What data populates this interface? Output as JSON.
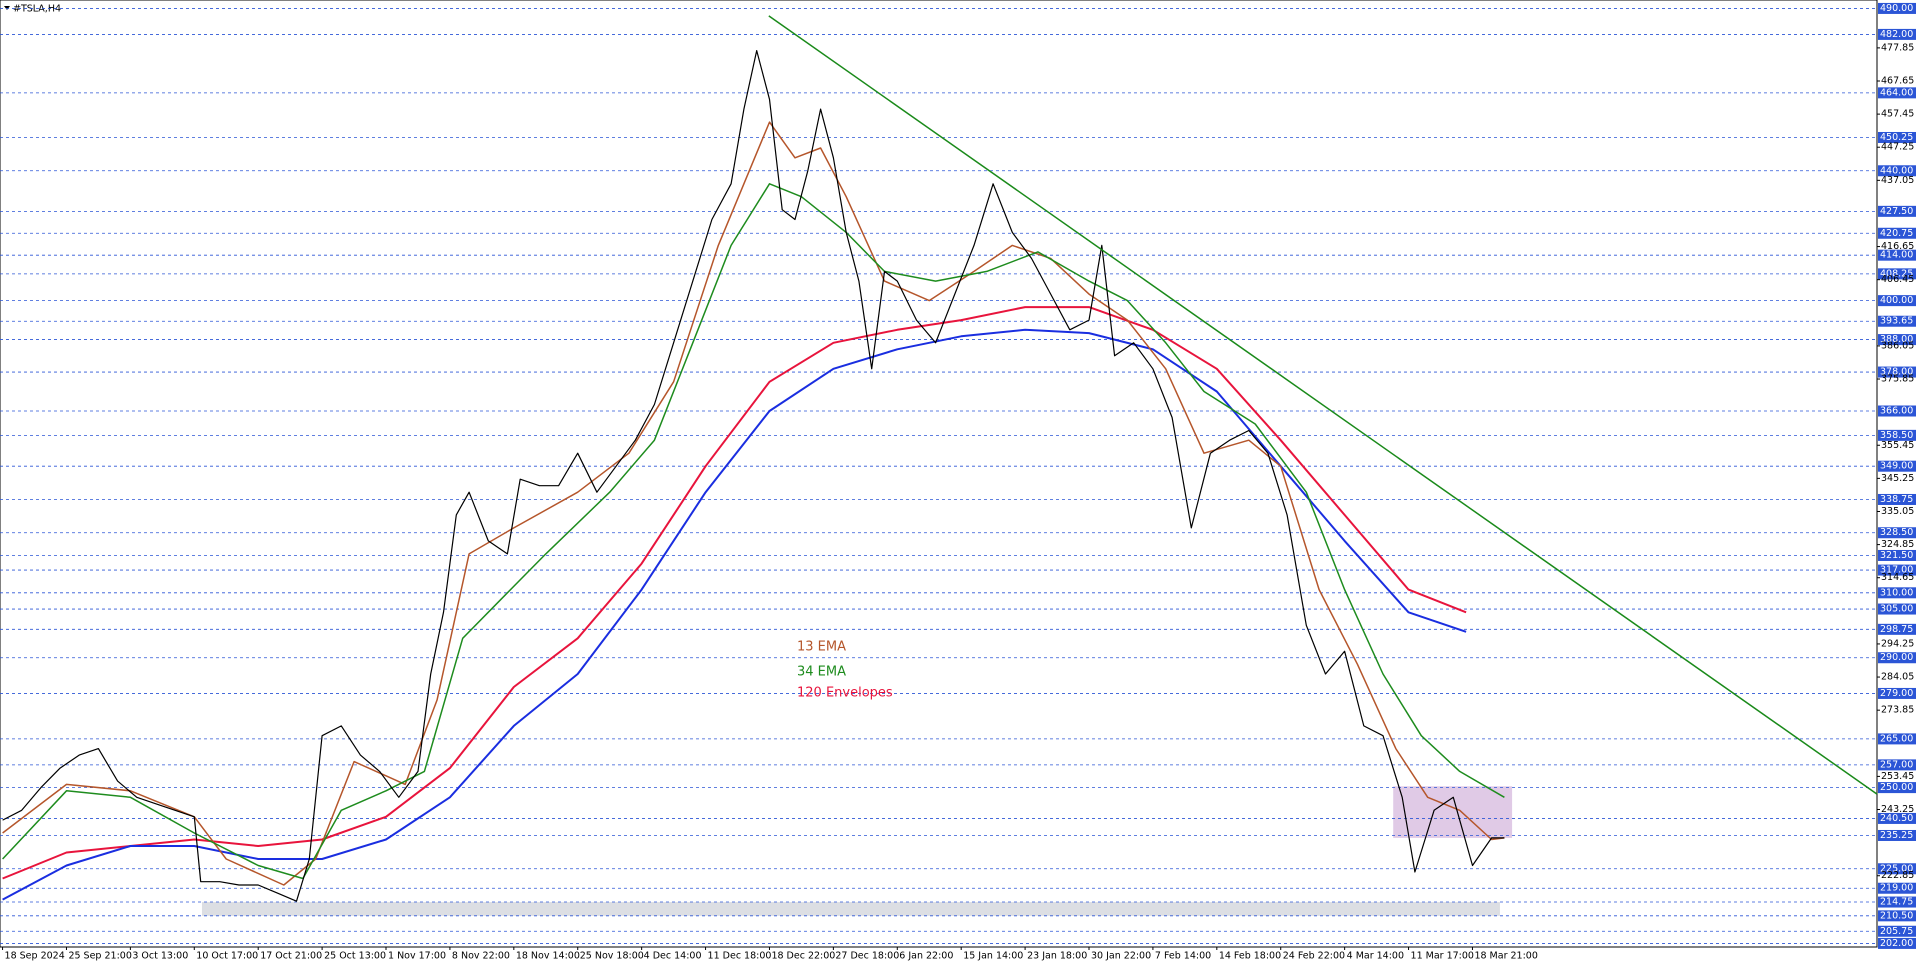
{
  "chart_data": {
    "type": "line",
    "title": "#TSLA,H4",
    "categories": [
      "18 Sep 2024",
      "25 Sep 21:00",
      "3 Oct 13:00",
      "10 Oct 17:00",
      "17 Oct 21:00",
      "25 Oct 13:00",
      "1 Nov 17:00",
      "8 Nov 22:00",
      "18 Nov 14:00",
      "25 Nov 18:00",
      "4 Dec 14:00",
      "11 Dec 18:00",
      "18 Dec 22:00",
      "27 Dec 18:00",
      "6 Jan 22:00",
      "15 Jan 14:00",
      "23 Jan 18:00",
      "30 Jan 22:00",
      "7 Feb 14:00",
      "14 Feb 18:00",
      "24 Feb 22:00",
      "4 Mar 14:00",
      "11 Mar 17:00",
      "18 Mar 21:00"
    ],
    "xlim": [
      -0.04,
      29.33
    ],
    "ylim": [
      200.9,
      492.6
    ],
    "levels": [
      {
        "value": 490,
        "label": "490.00"
      },
      {
        "value": 482,
        "label": "482.00"
      },
      {
        "value": 464,
        "label": "464.00"
      },
      {
        "value": 450.25,
        "label": "450.25"
      },
      {
        "value": 440,
        "label": "440.00"
      },
      {
        "value": 427.5,
        "label": "427.50"
      },
      {
        "value": 420.75,
        "label": "420.75"
      },
      {
        "value": 414,
        "label": "414.00"
      },
      {
        "value": 408.25,
        "label": "408.25"
      },
      {
        "value": 400,
        "label": "400.00"
      },
      {
        "value": 393.65,
        "label": "393.65"
      },
      {
        "value": 388,
        "label": "388.00"
      },
      {
        "value": 378,
        "label": "378.00"
      },
      {
        "value": 366,
        "label": "366.00"
      },
      {
        "value": 358.5,
        "label": "358.50"
      },
      {
        "value": 349,
        "label": "349.00"
      },
      {
        "value": 338.75,
        "label": "338.75"
      },
      {
        "value": 328.5,
        "label": "328.50"
      },
      {
        "value": 321.5,
        "label": "321.50"
      },
      {
        "value": 317,
        "label": "317.00"
      },
      {
        "value": 310,
        "label": "310.00"
      },
      {
        "value": 305,
        "label": "305.00"
      },
      {
        "value": 298.75,
        "label": "298.75"
      },
      {
        "value": 290,
        "label": "290.00"
      },
      {
        "value": 279,
        "label": "279.00"
      },
      {
        "value": 265,
        "label": "265.00"
      },
      {
        "value": 257,
        "label": "257.00"
      },
      {
        "value": 250,
        "label": "250.00"
      },
      {
        "value": 240.5,
        "label": "240.50"
      },
      {
        "value": 235.25,
        "label": "235.25"
      },
      {
        "value": 225,
        "label": "225.00"
      },
      {
        "value": 219,
        "label": "219.00"
      },
      {
        "value": 214.75,
        "label": "214.75"
      },
      {
        "value": 210.5,
        "label": "210.50"
      },
      {
        "value": 205.75,
        "label": "205.75"
      },
      {
        "value": 202,
        "label": "202.00"
      }
    ],
    "yticks": [
      {
        "value": 477.85,
        "label": "477.85"
      },
      {
        "value": 467.65,
        "label": "467.65"
      },
      {
        "value": 457.45,
        "label": "457.45"
      },
      {
        "value": 447.25,
        "label": "447.25"
      },
      {
        "value": 437.05,
        "label": "437.05"
      },
      {
        "value": 416.65,
        "label": "416.65"
      },
      {
        "value": 406.45,
        "label": "406.45"
      },
      {
        "value": 386.05,
        "label": "386.05"
      },
      {
        "value": 375.85,
        "label": "375.85"
      },
      {
        "value": 355.45,
        "label": "355.45"
      },
      {
        "value": 345.25,
        "label": "345.25"
      },
      {
        "value": 335.05,
        "label": "335.05"
      },
      {
        "value": 324.85,
        "label": "324.85"
      },
      {
        "value": 314.65,
        "label": "314.65"
      },
      {
        "value": 294.25,
        "label": "294.25"
      },
      {
        "value": 284.05,
        "label": "284.05"
      },
      {
        "value": 273.85,
        "label": "273.85"
      },
      {
        "value": 253.45,
        "label": "253.45"
      },
      {
        "value": 243.25,
        "label": "243.25"
      },
      {
        "value": 222.85,
        "label": "222.85"
      }
    ],
    "level_color": "#2b55d6",
    "price": {
      "color": "#000000",
      "x": [
        0,
        0.3,
        0.6,
        0.9,
        1.2,
        1.5,
        1.8,
        2.1,
        2.4,
        2.7,
        3.0,
        3.1,
        3.4,
        3.7,
        4.0,
        4.3,
        4.6,
        4.8,
        5.0,
        5.3,
        5.6,
        5.9,
        6.2,
        6.5,
        6.7,
        6.9,
        7.1,
        7.3,
        7.6,
        7.9,
        8.1,
        8.4,
        8.7,
        9.0,
        9.3,
        9.6,
        9.9,
        10.2,
        10.5,
        10.8,
        11.1,
        11.4,
        11.6,
        11.8,
        12.0,
        12.2,
        12.4,
        12.6,
        12.8,
        13.0,
        13.2,
        13.4,
        13.6,
        13.8,
        14.0,
        14.3,
        14.6,
        14.9,
        15.2,
        15.5,
        15.8,
        16.1,
        16.4,
        16.7,
        17.0,
        17.2,
        17.4,
        17.7,
        18.0,
        18.3,
        18.6,
        18.9,
        19.2,
        19.5,
        19.8,
        20.1,
        20.4,
        20.7,
        21.0,
        21.3,
        21.6,
        21.9,
        22.1,
        22.4,
        22.7,
        23.0,
        23.3,
        23.5
      ],
      "values": [
        240,
        243,
        250,
        256,
        260,
        262,
        252,
        247,
        245,
        243,
        241,
        221,
        221,
        220,
        220,
        217.5,
        215,
        228,
        266,
        269,
        260,
        255,
        247,
        255,
        285,
        304,
        334,
        341,
        326,
        322,
        345,
        343,
        343,
        353,
        341,
        349,
        357,
        368,
        387,
        406,
        425,
        436,
        459,
        477,
        462,
        428,
        425,
        440,
        459,
        444,
        421,
        406,
        379,
        409,
        406,
        394,
        387,
        402,
        417,
        436,
        421,
        413,
        402,
        391,
        394,
        417,
        383,
        387,
        379,
        364,
        330,
        353,
        357,
        360,
        353,
        334,
        300,
        285,
        292,
        269,
        266,
        247,
        224,
        243,
        247,
        226,
        234.5,
        234.5
      ]
    },
    "series": [
      {
        "name": "13 EMA",
        "color": "#b5562b",
        "x": [
          0,
          1,
          2,
          3,
          3.5,
          4.4,
          4.9,
          5.5,
          6.3,
          6.8,
          7.3,
          8,
          9,
          9.8,
          10.5,
          11.2,
          11.6,
          12,
          12.4,
          12.8,
          13.2,
          13.8,
          14.5,
          15.2,
          15.8,
          16.4,
          17,
          17.6,
          18.2,
          18.8,
          19.5,
          20,
          20.6,
          21.2,
          21.8,
          22.3,
          22.8,
          23.3,
          23.5
        ],
        "values": [
          236,
          251,
          249,
          241,
          228,
          220,
          228,
          258,
          251,
          277,
          322,
          330,
          341,
          353,
          375,
          417,
          436,
          455,
          444,
          447,
          432,
          406,
          400,
          409,
          417,
          413,
          402,
          394,
          379,
          353,
          357,
          349,
          311,
          288,
          262,
          247,
          243,
          234,
          234.5
        ]
      },
      {
        "name": "34 EMA",
        "color": "#1e8c1e",
        "x": [
          0,
          1,
          2,
          3,
          4,
          4.7,
          5.3,
          6,
          6.6,
          7.2,
          7.8,
          8.5,
          9.5,
          10.2,
          10.8,
          11.4,
          12,
          12.5,
          13.2,
          13.8,
          14.6,
          15.4,
          16.2,
          17,
          17.6,
          18.2,
          18.8,
          19.6,
          20.4,
          21,
          21.6,
          22.2,
          22.8,
          23.5
        ],
        "values": [
          228,
          249,
          247,
          236,
          226,
          222,
          243,
          249,
          255,
          296,
          308,
          322,
          341,
          357,
          387,
          417,
          436,
          432,
          421,
          409,
          406,
          409,
          415,
          406,
          400,
          387,
          372,
          362,
          341,
          311,
          285,
          266,
          255,
          247
        ]
      }
    ],
    "envelopes": {
      "name": "120 Envelopes",
      "upper": {
        "color": "#e8143c",
        "x": [
          0,
          1,
          2,
          3,
          4,
          5,
          6,
          7,
          8,
          9,
          10,
          11,
          12,
          13,
          14,
          15,
          16,
          17,
          18,
          19,
          20,
          21,
          22,
          22.9
        ],
        "values": [
          222,
          230,
          232,
          234,
          232,
          234,
          241,
          256,
          281,
          296,
          319,
          349,
          375,
          387,
          391,
          394,
          398,
          398,
          391,
          379,
          357,
          334,
          311,
          304
        ]
      },
      "lower": {
        "color": "#1a2ee0",
        "x": [
          0,
          1,
          2,
          3,
          4,
          5,
          6,
          7,
          8,
          9,
          10,
          11,
          12,
          13,
          14,
          15,
          16,
          17,
          18,
          19,
          20,
          21,
          22,
          22.9
        ],
        "values": [
          215.5,
          226,
          232,
          232,
          228,
          228,
          234,
          247,
          269,
          285,
          311,
          341,
          366,
          379,
          385,
          389,
          391,
          390,
          385,
          372,
          349,
          326,
          304,
          298
        ]
      }
    },
    "trendline": {
      "color": "#1a8a1a",
      "x": [
        11.99,
        29.33
      ],
      "values": [
        487.7,
        248
      ]
    },
    "zones": [
      {
        "color": "#d3d6dc",
        "x": [
          3.12,
          23.43
        ],
        "values": [
          214.75,
          210.5
        ]
      },
      {
        "color": "#d8bde0",
        "x": [
          21.76,
          23.62
        ],
        "values": [
          250.4,
          234.5
        ]
      }
    ]
  }
}
